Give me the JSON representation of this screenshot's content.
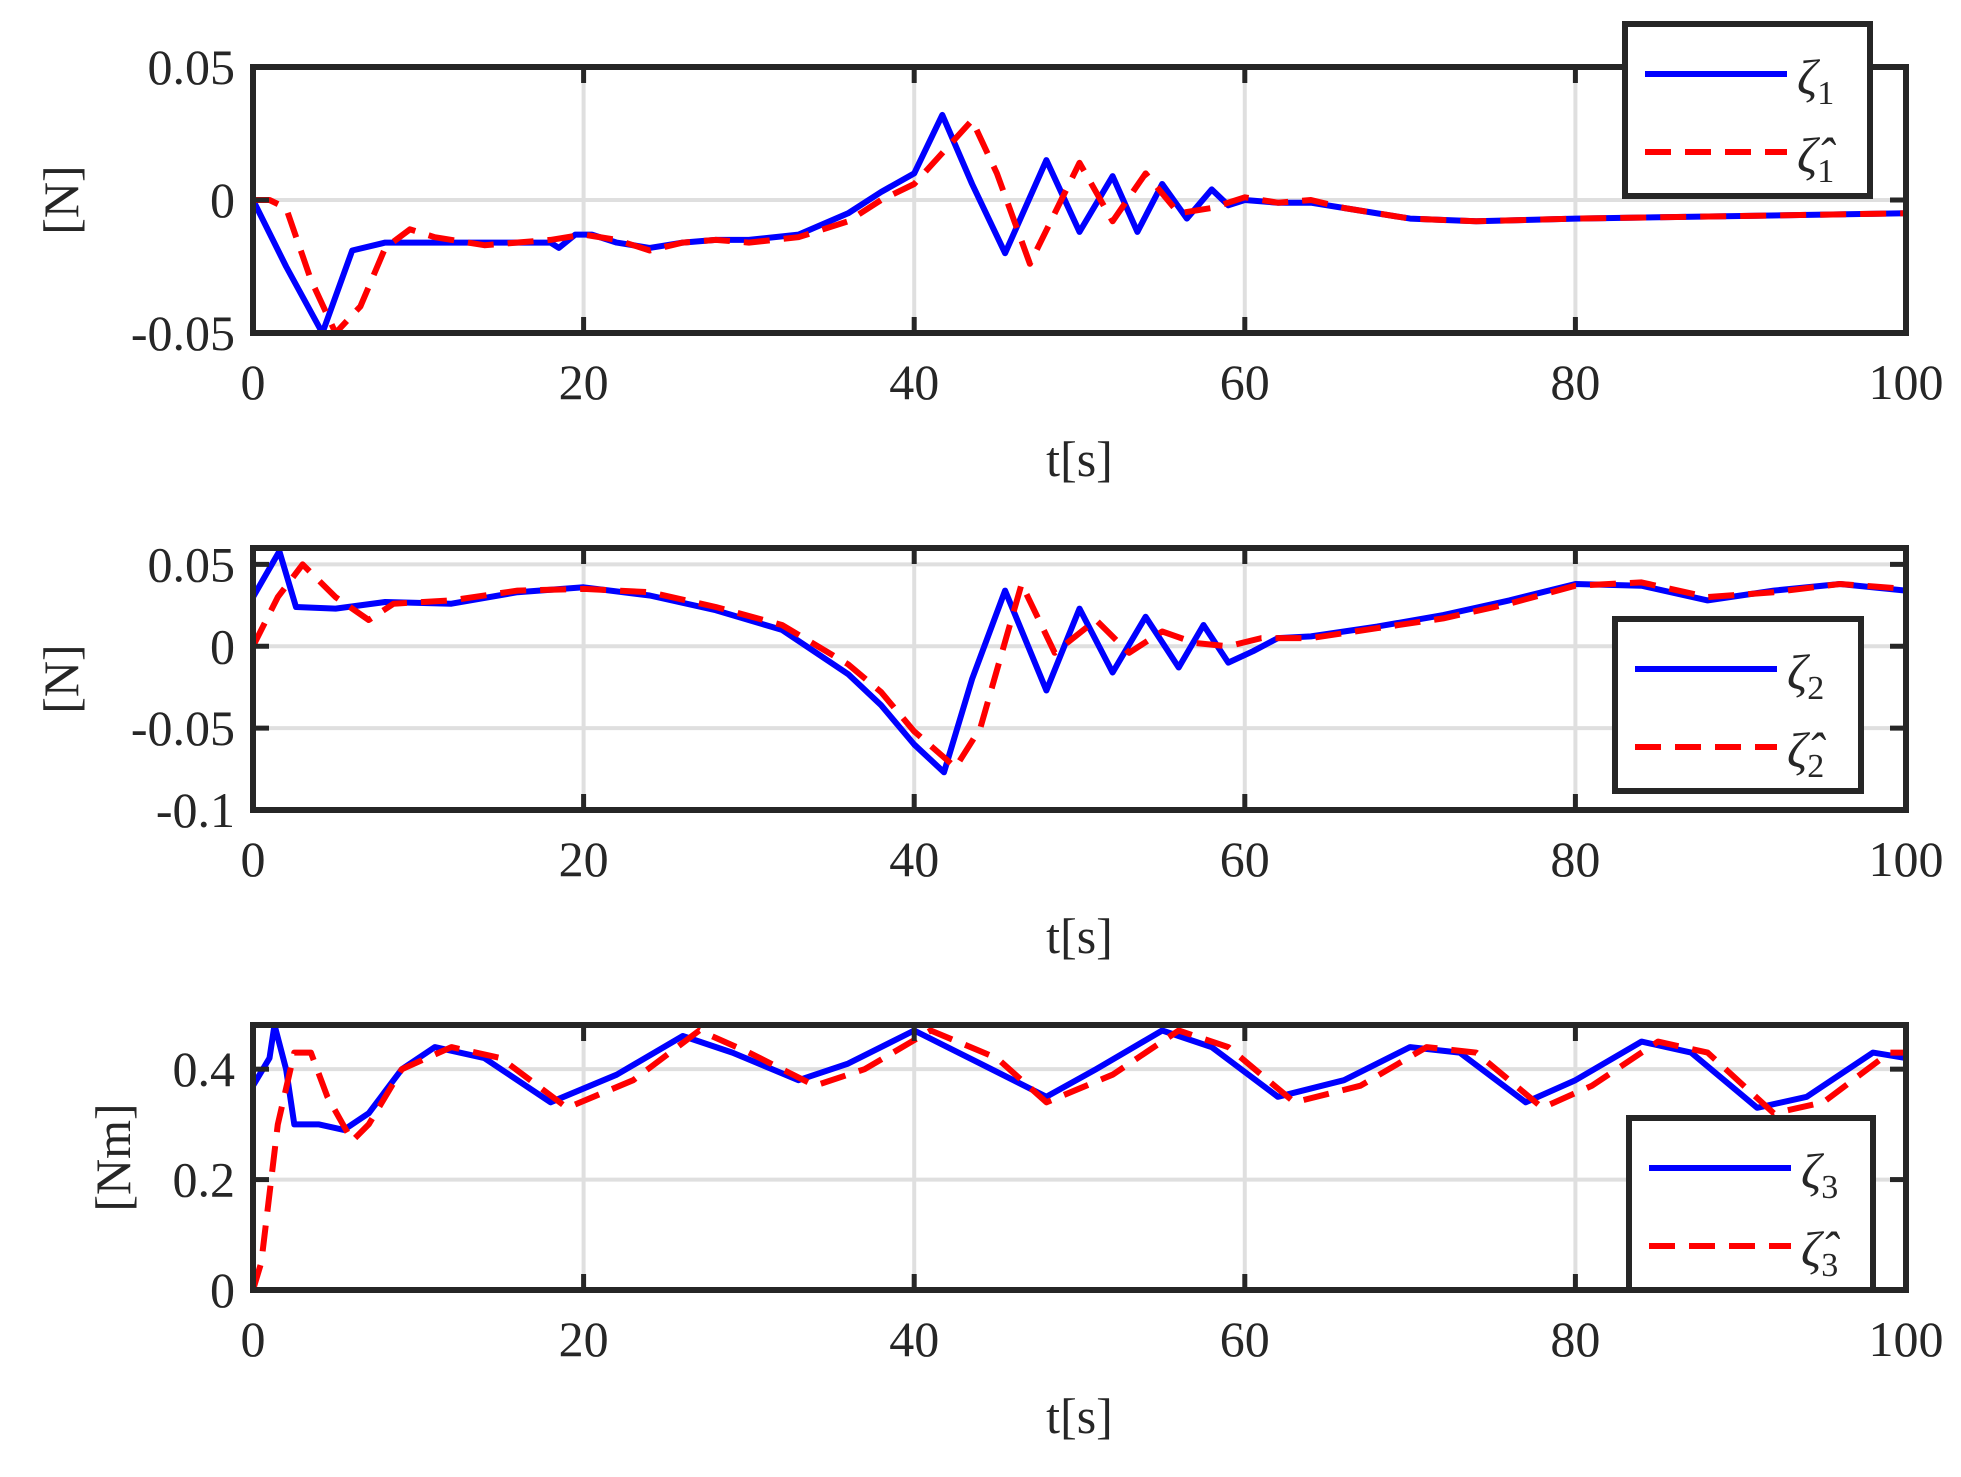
{
  "colors": {
    "actual": "#0000ff",
    "estimate": "#ff0000",
    "axes": "#262626",
    "grid": "#dfdfdf"
  },
  "chart_data": [
    {
      "type": "line",
      "xlabel": "t[s]",
      "ylabel": "[N]",
      "xlim": [
        0,
        100
      ],
      "ylim": [
        -0.05,
        0.05
      ],
      "xticks": [
        0,
        20,
        40,
        60,
        80,
        100
      ],
      "xtick_labels": [
        "0",
        "20",
        "40",
        "60",
        "80",
        "100"
      ],
      "yticks": [
        -0.05,
        0,
        0.05
      ],
      "ytick_labels": [
        "-0.05",
        "0",
        "0.05"
      ],
      "grid": true,
      "legend_position": "top-right",
      "series": [
        {
          "name": "ζ1",
          "legend_base": "ζ",
          "legend_sub": "1",
          "style": "solid",
          "x": [
            0,
            2,
            4.2,
            6,
            8,
            10,
            14,
            18,
            18.5,
            19.5,
            20.5,
            22,
            24,
            26,
            28,
            30,
            33,
            36,
            38,
            40,
            41.7,
            43.5,
            45.5,
            48,
            50,
            52,
            53.5,
            55,
            56.5,
            58,
            59,
            60,
            62,
            64,
            66,
            70,
            74,
            80,
            90,
            100
          ],
          "y": [
            0,
            -0.025,
            -0.05,
            -0.019,
            -0.016,
            -0.016,
            -0.016,
            -0.016,
            -0.018,
            -0.013,
            -0.013,
            -0.016,
            -0.018,
            -0.016,
            -0.015,
            -0.015,
            -0.013,
            -0.005,
            0.003,
            0.01,
            0.032,
            0.006,
            -0.02,
            0.015,
            -0.012,
            0.009,
            -0.012,
            0.006,
            -0.007,
            0.004,
            -0.002,
            0,
            -0.001,
            -0.001,
            -0.003,
            -0.007,
            -0.008,
            -0.007,
            -0.006,
            -0.005
          ]
        },
        {
          "name": "ζ̂1",
          "legend_base": "ζ̂",
          "legend_sub": "1",
          "style": "dashed",
          "x": [
            0,
            1,
            2,
            3.5,
            5,
            6.5,
            8,
            9.5,
            11,
            14,
            18,
            20,
            22,
            24,
            26,
            28,
            30,
            33,
            36,
            38,
            40,
            43.5,
            45,
            47,
            48.5,
            50,
            52,
            54,
            56,
            58,
            60,
            62,
            64,
            66,
            70,
            74,
            80,
            90,
            100
          ],
          "y": [
            0,
            0,
            -0.003,
            -0.03,
            -0.05,
            -0.04,
            -0.018,
            -0.011,
            -0.014,
            -0.017,
            -0.015,
            -0.013,
            -0.015,
            -0.019,
            -0.016,
            -0.015,
            -0.016,
            -0.014,
            -0.008,
            0,
            0.006,
            0.03,
            0.01,
            -0.024,
            -0.005,
            0.014,
            -0.008,
            0.01,
            -0.005,
            -0.003,
            0.001,
            -0.001,
            0,
            -0.003,
            -0.007,
            -0.008,
            -0.007,
            -0.006,
            -0.005
          ]
        }
      ]
    },
    {
      "type": "line",
      "xlabel": "t[s]",
      "ylabel": "[N]",
      "xlim": [
        0,
        100
      ],
      "ylim": [
        -0.1,
        0.06
      ],
      "xticks": [
        0,
        20,
        40,
        60,
        80,
        100
      ],
      "xtick_labels": [
        "0",
        "20",
        "40",
        "60",
        "80",
        "100"
      ],
      "yticks": [
        -0.1,
        -0.05,
        0,
        0.05
      ],
      "ytick_labels": [
        "-0.1",
        "-0.05",
        "0",
        "0.05"
      ],
      "grid": true,
      "legend_position": "right",
      "series": [
        {
          "name": "ζ2",
          "legend_base": "ζ",
          "legend_sub": "2",
          "style": "solid",
          "x": [
            0,
            1.6,
            2.6,
            5,
            8,
            12,
            16,
            20,
            24,
            28,
            32,
            36,
            38,
            40,
            41.8,
            43.5,
            45.5,
            48,
            50,
            52,
            54,
            56,
            57.5,
            59,
            60.5,
            62,
            64,
            68,
            72,
            76,
            80,
            84,
            88,
            92,
            96,
            100
          ],
          "y": [
            0.03,
            0.058,
            0.024,
            0.023,
            0.027,
            0.026,
            0.033,
            0.036,
            0.031,
            0.022,
            0.01,
            -0.017,
            -0.036,
            -0.06,
            -0.077,
            -0.02,
            0.034,
            -0.027,
            0.023,
            -0.016,
            0.018,
            -0.013,
            0.013,
            -0.01,
            -0.003,
            0.005,
            0.006,
            0.012,
            0.019,
            0.028,
            0.038,
            0.037,
            0.028,
            0.034,
            0.038,
            0.034
          ]
        },
        {
          "name": "ζ̂2",
          "legend_base": "ζ̂",
          "legend_sub": "2",
          "style": "dashed",
          "x": [
            0,
            1.5,
            3,
            5,
            7,
            8.5,
            12,
            16,
            20,
            24,
            28,
            32,
            36,
            38,
            40,
            42.5,
            44,
            46.5,
            48.5,
            51,
            53,
            55,
            57,
            59,
            61,
            64,
            68,
            72,
            76,
            80,
            84,
            88,
            92,
            96,
            100
          ],
          "y": [
            0,
            0.03,
            0.05,
            0.03,
            0.016,
            0.026,
            0.028,
            0.034,
            0.035,
            0.033,
            0.024,
            0.013,
            -0.011,
            -0.028,
            -0.052,
            -0.074,
            -0.05,
            0.038,
            -0.004,
            0.016,
            -0.004,
            0.009,
            0.002,
            0,
            0.005,
            0.005,
            0.011,
            0.017,
            0.026,
            0.037,
            0.039,
            0.03,
            0.033,
            0.038,
            0.035
          ]
        }
      ]
    },
    {
      "type": "line",
      "xlabel": "t[s]",
      "ylabel": "[Nm]",
      "xlim": [
        0,
        100
      ],
      "ylim": [
        0,
        0.48
      ],
      "xticks": [
        0,
        20,
        40,
        60,
        80,
        100
      ],
      "xtick_labels": [
        "0",
        "20",
        "40",
        "60",
        "80",
        "100"
      ],
      "yticks": [
        0,
        0.2,
        0.4
      ],
      "ytick_labels": [
        "0",
        "0.2",
        "0.4"
      ],
      "grid": true,
      "legend_position": "bottom-right",
      "series": [
        {
          "name": "ζ3",
          "legend_base": "ζ",
          "legend_sub": "3",
          "style": "solid",
          "x": [
            0,
            1,
            1.3,
            2,
            2.5,
            4,
            5.5,
            7,
            9,
            11,
            14,
            18,
            22,
            26,
            29,
            33,
            36,
            40,
            44,
            48,
            51,
            55,
            58,
            62,
            66,
            70,
            73,
            77,
            80,
            84,
            87,
            91,
            94,
            98,
            100
          ],
          "y": [
            0.37,
            0.42,
            0.48,
            0.4,
            0.3,
            0.3,
            0.29,
            0.32,
            0.4,
            0.44,
            0.42,
            0.34,
            0.39,
            0.46,
            0.43,
            0.38,
            0.41,
            0.47,
            0.41,
            0.35,
            0.4,
            0.47,
            0.44,
            0.35,
            0.38,
            0.44,
            0.43,
            0.34,
            0.38,
            0.45,
            0.43,
            0.33,
            0.35,
            0.43,
            0.42
          ]
        },
        {
          "name": "ζ̂3",
          "legend_base": "ζ̂",
          "legend_sub": "3",
          "style": "dashed",
          "x": [
            0,
            0.5,
            1.5,
            2.5,
            3.5,
            4.5,
            6,
            7,
            9,
            12,
            15,
            19,
            23,
            27,
            30,
            34,
            37,
            41,
            45,
            48,
            52,
            56,
            59,
            63,
            67,
            71,
            74,
            78,
            81,
            85,
            88,
            92,
            95,
            99,
            100
          ],
          "y": [
            0,
            0.05,
            0.3,
            0.43,
            0.43,
            0.35,
            0.27,
            0.3,
            0.4,
            0.44,
            0.42,
            0.33,
            0.38,
            0.47,
            0.43,
            0.37,
            0.4,
            0.47,
            0.42,
            0.34,
            0.39,
            0.47,
            0.44,
            0.34,
            0.37,
            0.44,
            0.43,
            0.33,
            0.37,
            0.45,
            0.43,
            0.32,
            0.34,
            0.43,
            0.43
          ]
        }
      ]
    }
  ]
}
